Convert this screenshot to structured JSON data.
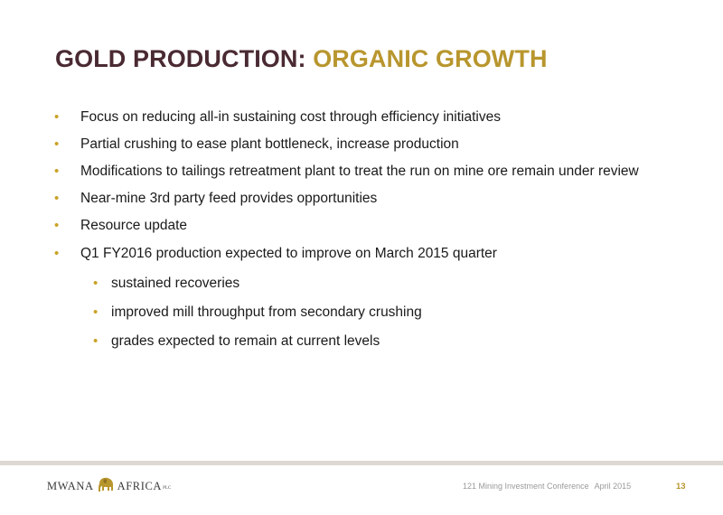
{
  "slide": {
    "title_part1": "GOLD PRODUCTION:",
    "title_part2": "ORGANIC GROWTH"
  },
  "bullets": [
    {
      "text": "Focus on reducing all-in sustaining cost through efficiency initiatives",
      "level": 1
    },
    {
      "text": "Partial crushing to ease plant bottleneck, increase production",
      "level": 1
    },
    {
      "text": "Modifications to tailings retreatment plant to treat the run on mine ore remain under review",
      "level": 1
    },
    {
      "text": "Near-mine 3rd party feed provides opportunities",
      "level": 1
    },
    {
      "text": "Resource update",
      "level": 1
    },
    {
      "text": "Q1 FY2016 production expected to improve on March 2015 quarter",
      "level": 1
    },
    {
      "text": "sustained recoveries",
      "level": 2
    },
    {
      "text": "improved mill throughput from secondary crushing",
      "level": 2
    },
    {
      "text": "grades expected to remain at current levels",
      "level": 2
    }
  ],
  "bullet_symbol": "•",
  "footer": {
    "logo_word1": "MWANA",
    "logo_word2": "AFRICA",
    "logo_suffix": "PLC",
    "conference": "121 Mining Investment Conference",
    "date": "April 2015",
    "page_number": "13"
  },
  "colors": {
    "title_dark": "#4a2a32",
    "title_gold": "#b8962e",
    "bullet_gold": "#c9a227",
    "footer_bar": "#ddd8d3"
  }
}
